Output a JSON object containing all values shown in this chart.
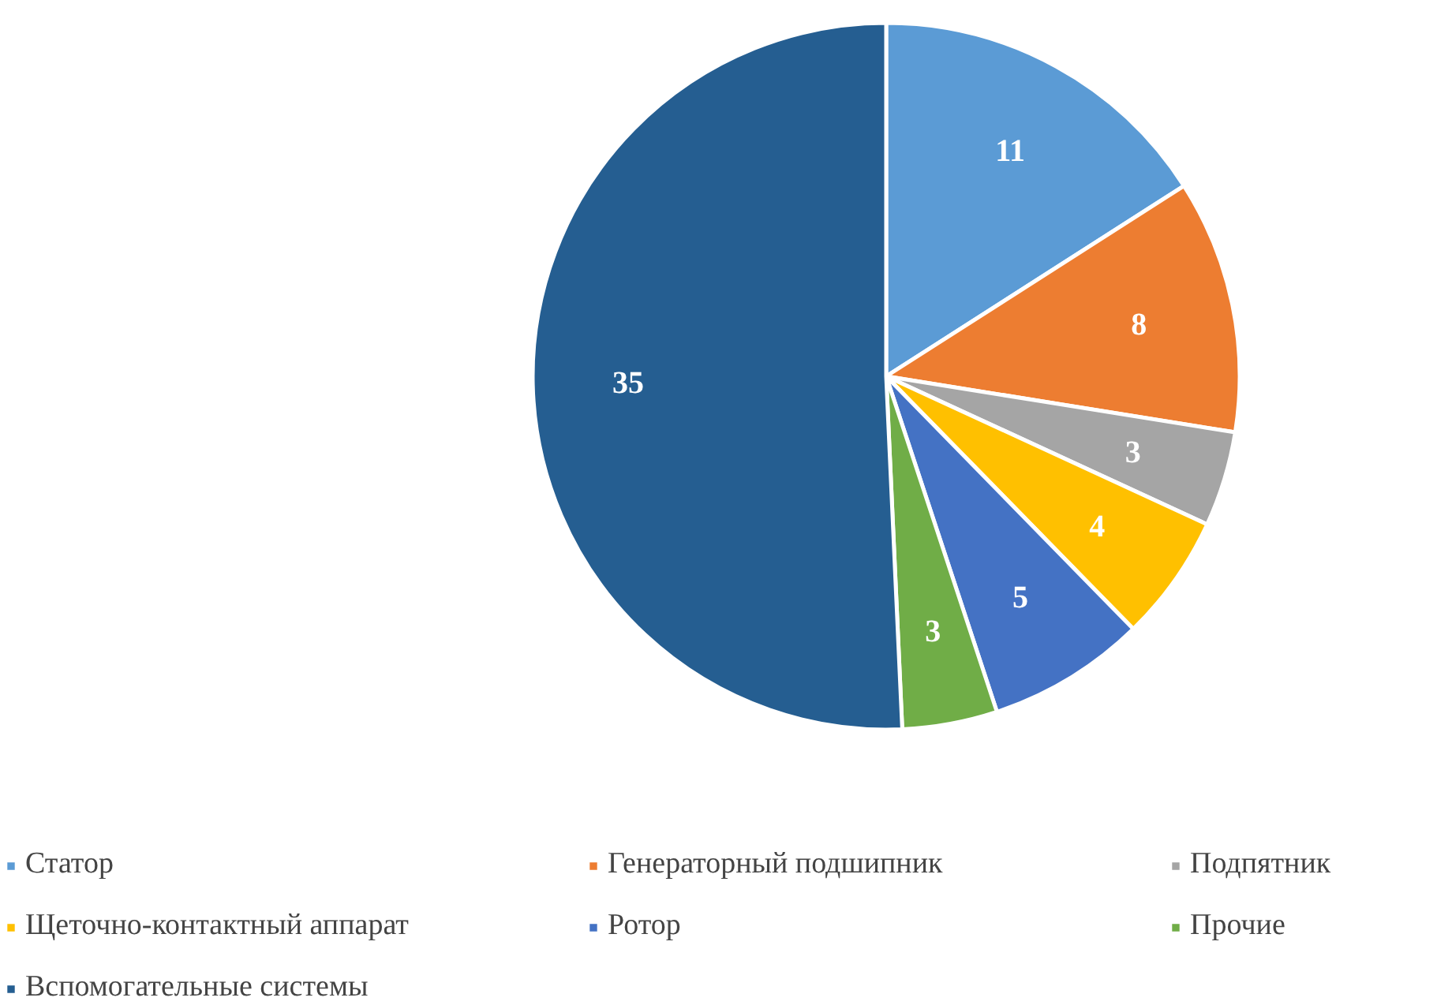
{
  "chart_data": {
    "type": "pie",
    "categories": [
      "Статор",
      "Генераторный подшипник",
      "Подпятник",
      "Щеточно-контактный аппарат",
      "Ротор",
      "Прочие",
      "Вспомогательные системы"
    ],
    "values": [
      11,
      8,
      3,
      4,
      5,
      3,
      35
    ],
    "colors": [
      "#5b9bd5",
      "#ed7d31",
      "#a5a5a5",
      "#ffc000",
      "#4472c4",
      "#70ad47",
      "#255e91"
    ],
    "data_labels": true,
    "legend": "bottom"
  }
}
